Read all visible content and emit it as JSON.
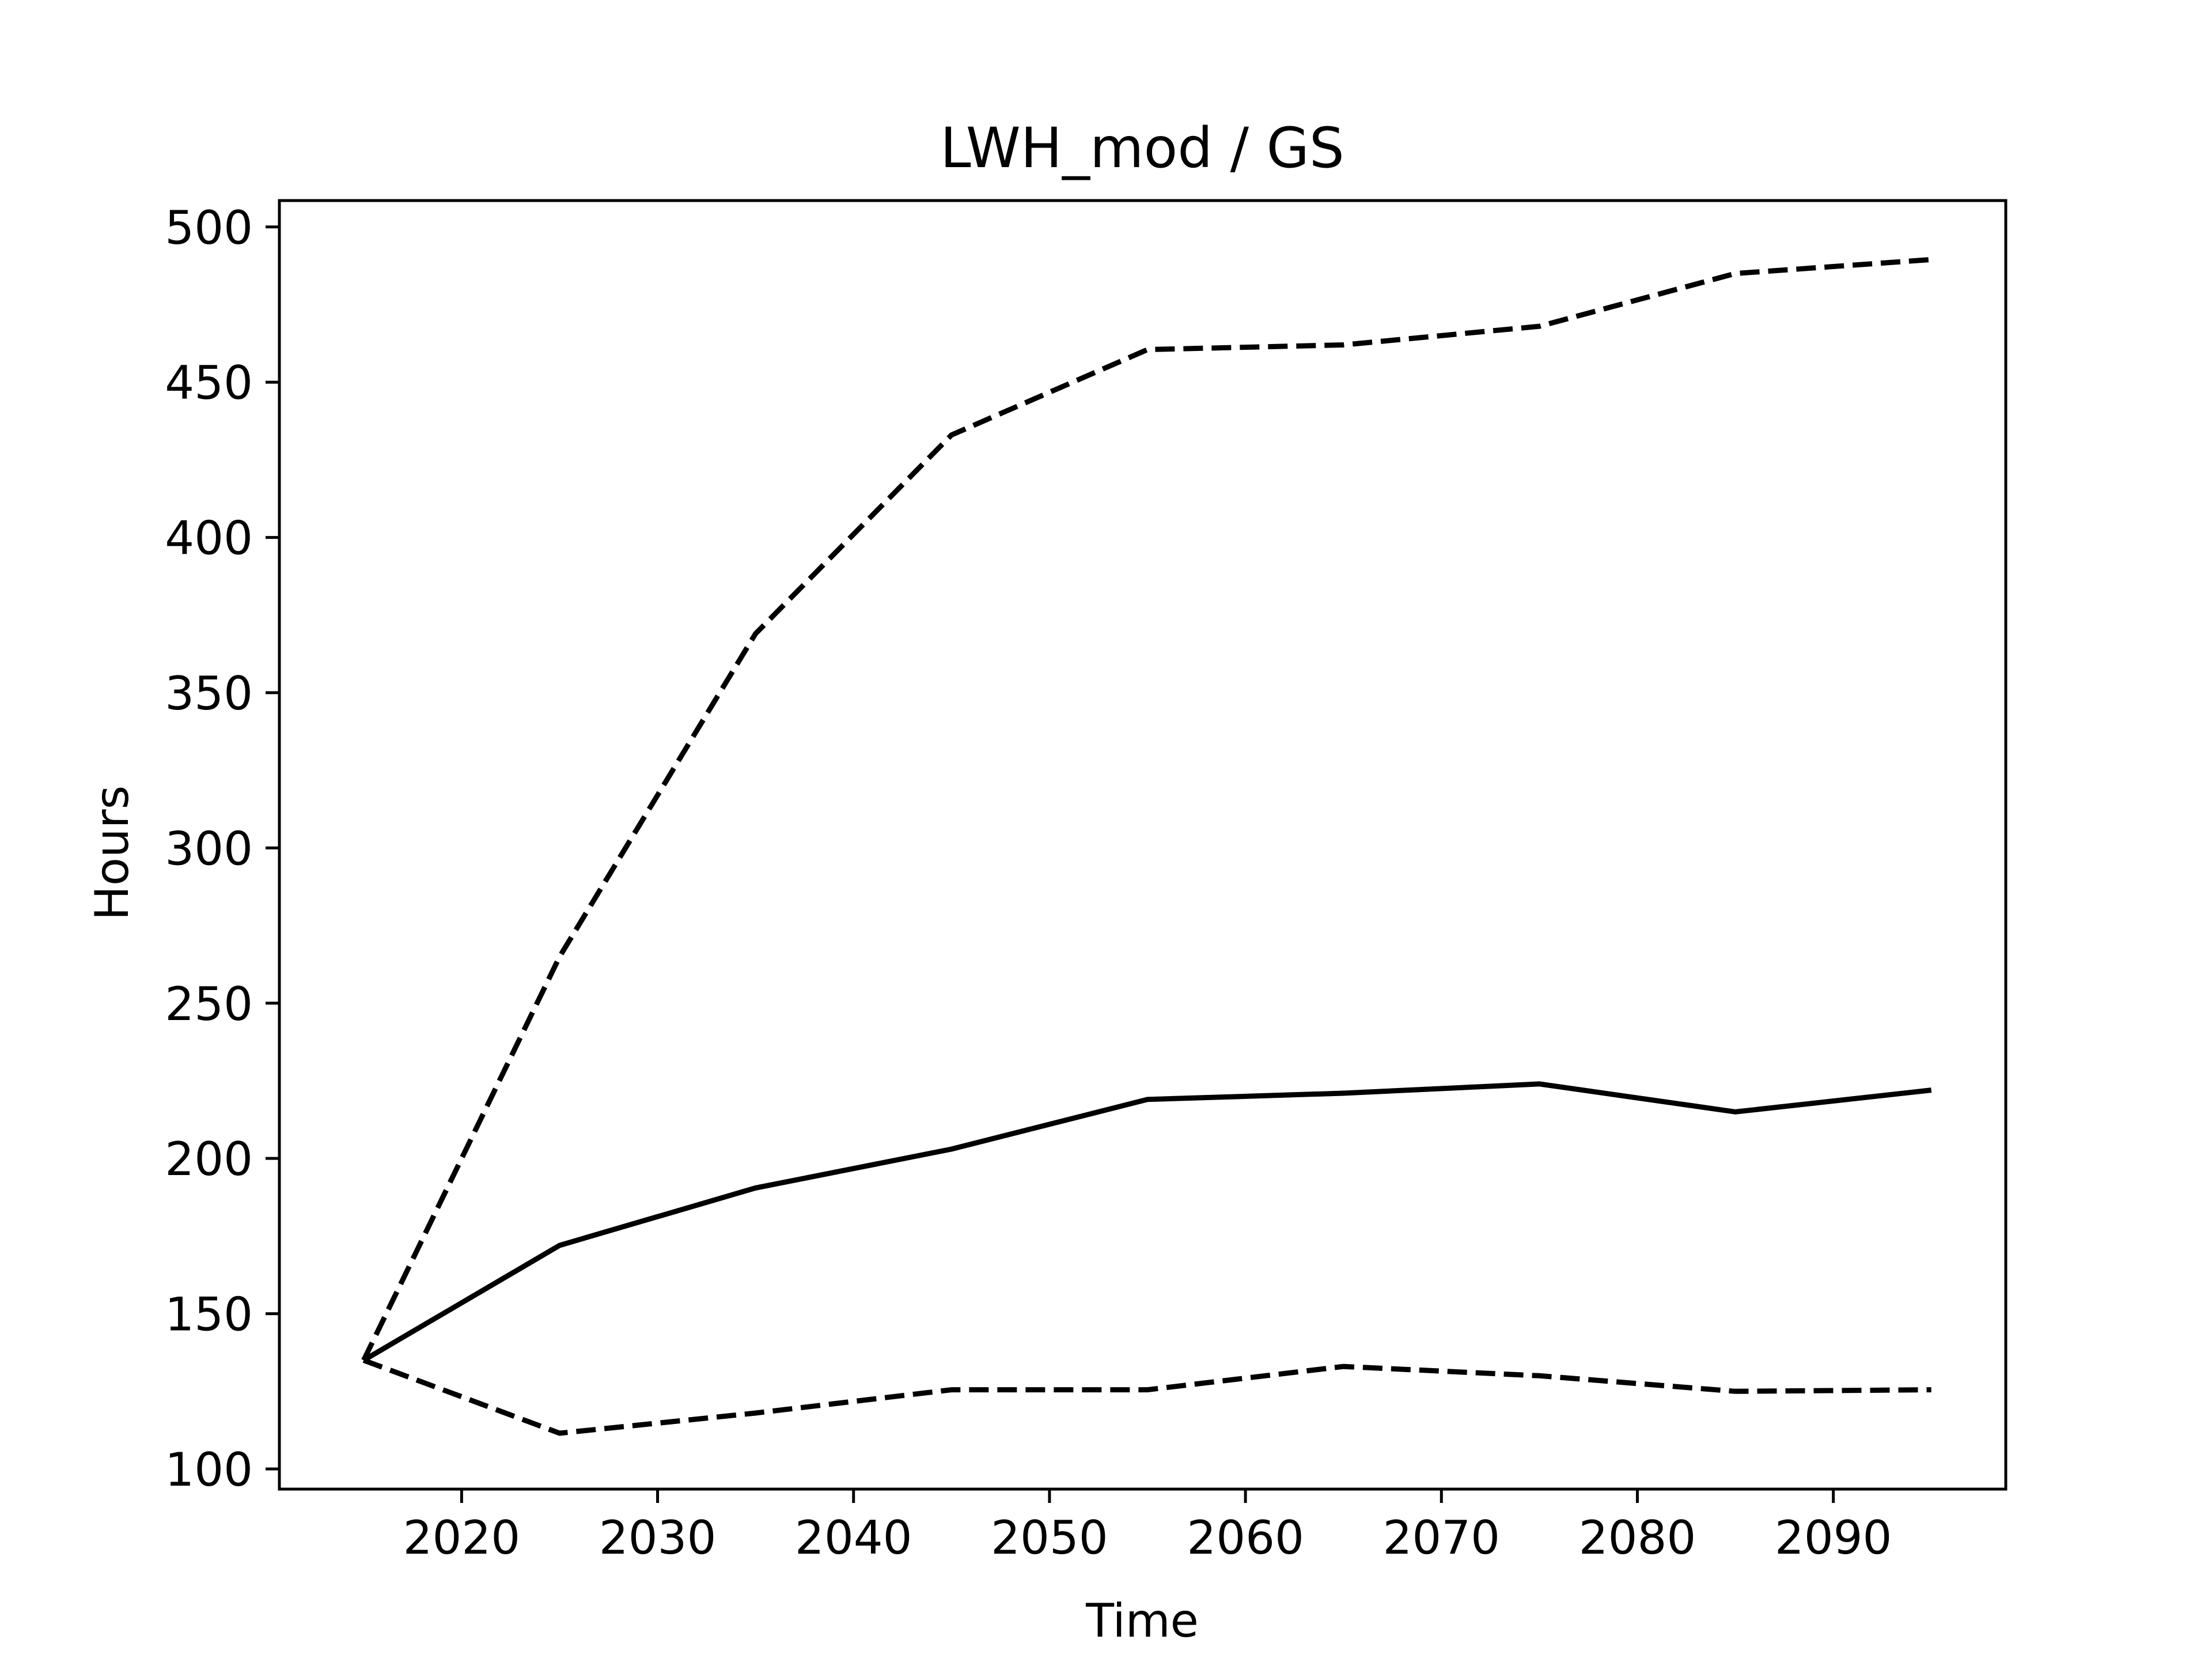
{
  "chart_data": {
    "type": "line",
    "title": "LWH_mod / GS",
    "xlabel": "Time",
    "ylabel": "Hours",
    "x": [
      2015,
      2025,
      2035,
      2045,
      2055,
      2065,
      2075,
      2085,
      2095
    ],
    "xlim": [
      2010.7,
      2098.8
    ],
    "ylim": [
      93.5,
      508.5
    ],
    "xticks": [
      2020,
      2030,
      2040,
      2050,
      2060,
      2070,
      2080,
      2090
    ],
    "yticks": [
      100,
      150,
      200,
      250,
      300,
      350,
      400,
      450,
      500
    ],
    "grid": false,
    "series": [
      {
        "style": "solid",
        "color": "#000000",
        "values": [
          135,
          172,
          190.5,
          203,
          219,
          221,
          224,
          215,
          222
        ]
      },
      {
        "style": "dashed",
        "color": "#000000",
        "values": [
          135,
          265,
          369,
          433,
          460.5,
          462,
          468,
          485,
          489.5
        ]
      },
      {
        "style": "dashed",
        "color": "#000000",
        "values": [
          135,
          111.5,
          118,
          125.5,
          125.5,
          133,
          130,
          125,
          125.5
        ]
      }
    ]
  }
}
